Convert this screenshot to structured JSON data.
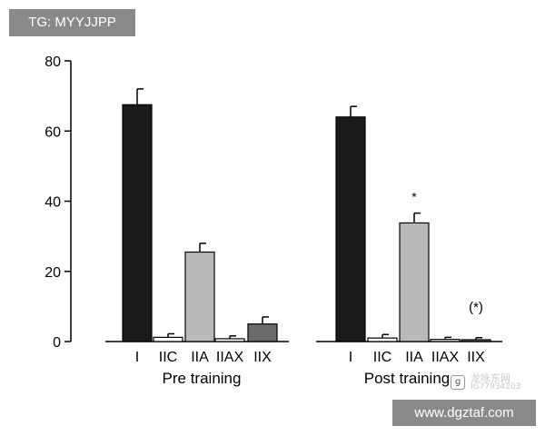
{
  "watermarks": {
    "top_label": "TG: MYYJJPP",
    "bottom_url": "www.dgztaf.com",
    "overlay_text": "龙咏东网",
    "overlay_id": "IG77934203",
    "badge_glyph": "g"
  },
  "colors": {
    "axis": "#000000",
    "I": "#1a1a1a",
    "IIC": "#ffffff",
    "IIA": "#b9b9b9",
    "IIAX": "#ffffff",
    "IIX": "#6b6b6b"
  },
  "chart_data": {
    "type": "bar",
    "ylim": [
      0,
      80
    ],
    "yticks": [
      0,
      20,
      40,
      60,
      80
    ],
    "categories": [
      "I",
      "IIC",
      "IIA",
      "IIAX",
      "IIX"
    ],
    "panels": [
      {
        "label": "Pre training",
        "values": [
          67.5,
          1.2,
          25.5,
          0.8,
          5.0
        ],
        "errors": [
          4.5,
          1.0,
          2.5,
          0.8,
          2.0
        ],
        "annotations": [
          "",
          "",
          "",
          "",
          ""
        ]
      },
      {
        "label": "Post training",
        "values": [
          64.0,
          1.0,
          33.8,
          0.6,
          0.3
        ],
        "errors": [
          3.0,
          1.0,
          2.8,
          0.6,
          0.8
        ],
        "annotations": [
          "",
          "",
          "*",
          "",
          "(*)"
        ]
      }
    ]
  }
}
